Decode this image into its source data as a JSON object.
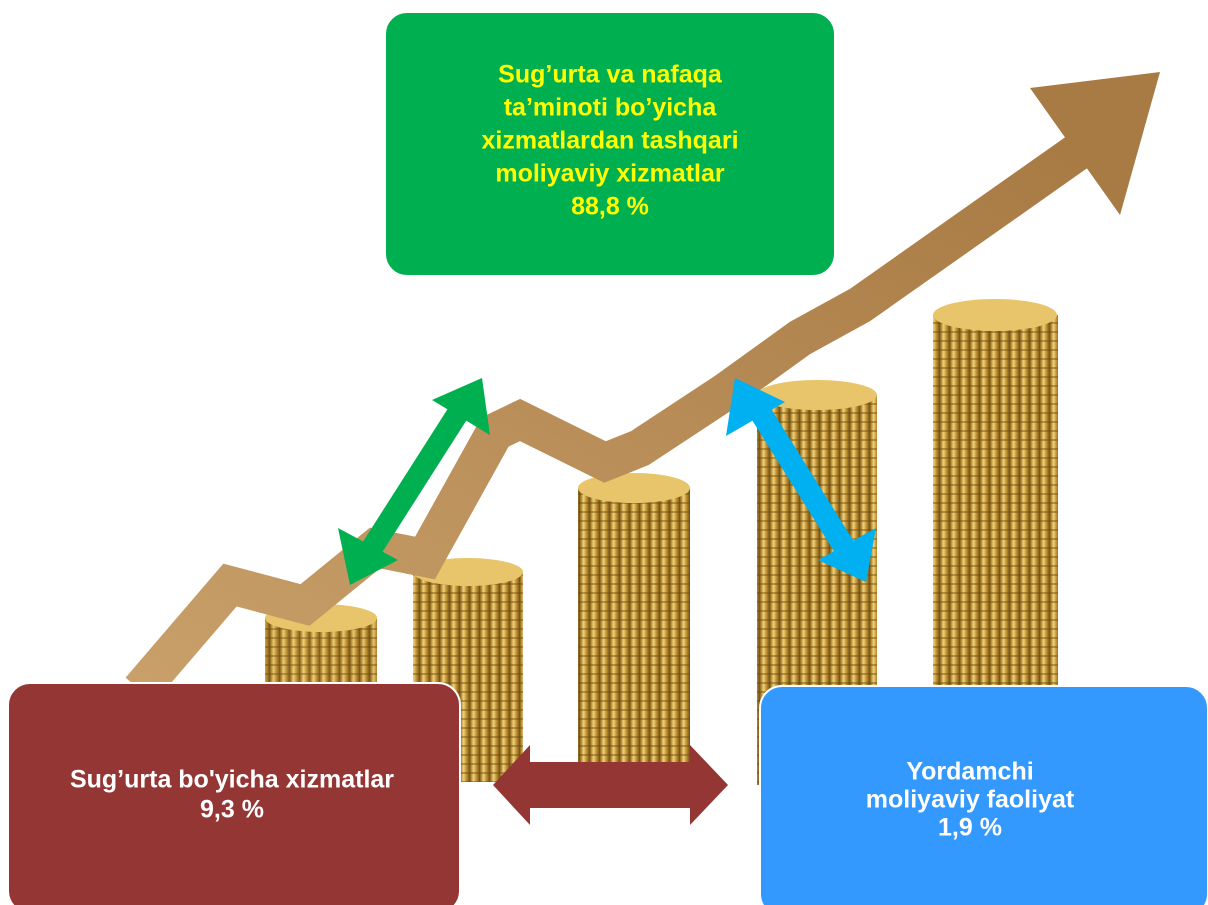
{
  "nodes": [
    {
      "lines": [
        "Sug’urta va nafaqa",
        "ta’minoti bo’yicha",
        "xizmatlardan tashqari",
        "moliyaviy xizmatlar"
      ],
      "value": "88,8 %"
    },
    {
      "lines": [
        "Sug’urta bo'yicha xizmatlar"
      ],
      "value": "9,3 %"
    },
    {
      "lines": [
        "Yordamchi",
        "moliyaviy faoliyat"
      ],
      "value": "1,9 %"
    }
  ]
}
